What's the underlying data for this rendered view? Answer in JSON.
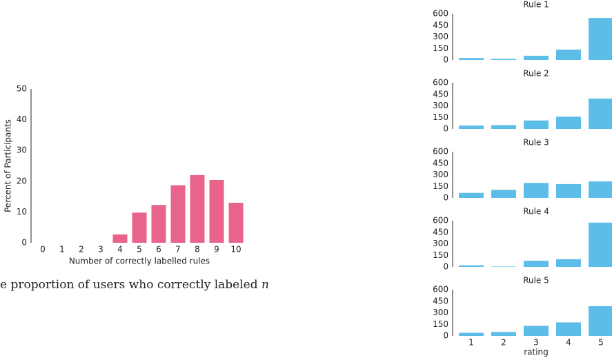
{
  "caption": [
    "e proportion of users who correctly labeled ",
    "n"
  ],
  "chart_data": [
    {
      "type": "bar",
      "categories": [
        "0",
        "1",
        "2",
        "3",
        "4",
        "5",
        "6",
        "7",
        "8",
        "9",
        "10"
      ],
      "values": [
        0,
        0,
        0,
        0,
        2.7,
        9.8,
        12.3,
        18.7,
        22,
        20.4,
        13
      ],
      "color": "#e8648a",
      "ylim": [
        0,
        50
      ],
      "yticks": [
        0,
        10,
        20,
        30,
        40,
        50
      ],
      "x_label": "Number of correctly labelled rules",
      "y_label": "Percent of Participants"
    },
    {
      "type": "bar",
      "title": "Rule 1",
      "categories": [
        "1",
        "2",
        "3",
        "4",
        "5"
      ],
      "values": [
        25,
        15,
        55,
        135,
        545
      ],
      "color": "#5bbde8",
      "ylim": [
        0,
        600
      ],
      "yticks": [
        0,
        150,
        300,
        450,
        600
      ]
    },
    {
      "type": "bar",
      "title": "Rule 2",
      "categories": [
        "1",
        "2",
        "3",
        "4",
        "5"
      ],
      "values": [
        45,
        50,
        110,
        160,
        395
      ],
      "color": "#5bbde8",
      "ylim": [
        0,
        600
      ],
      "yticks": [
        0,
        150,
        300,
        450,
        600
      ]
    },
    {
      "type": "bar",
      "title": "Rule 3",
      "categories": [
        "1",
        "2",
        "3",
        "4",
        "5"
      ],
      "values": [
        65,
        105,
        195,
        180,
        215
      ],
      "color": "#5bbde8",
      "ylim": [
        0,
        600
      ],
      "yticks": [
        0,
        150,
        300,
        450,
        600
      ]
    },
    {
      "type": "bar",
      "title": "Rule 4",
      "categories": [
        "1",
        "2",
        "3",
        "4",
        "5"
      ],
      "values": [
        20,
        5,
        80,
        100,
        575
      ],
      "color": "#5bbde8",
      "ylim": [
        0,
        600
      ],
      "yticks": [
        0,
        150,
        300,
        450,
        600
      ]
    },
    {
      "type": "bar",
      "title": "Rule 5",
      "categories": [
        "1",
        "2",
        "3",
        "4",
        "5"
      ],
      "values": [
        40,
        50,
        130,
        175,
        385
      ],
      "color": "#5bbde8",
      "ylim": [
        0,
        600
      ],
      "yticks": [
        0,
        150,
        300,
        450,
        600
      ],
      "x_label": "rating"
    }
  ]
}
